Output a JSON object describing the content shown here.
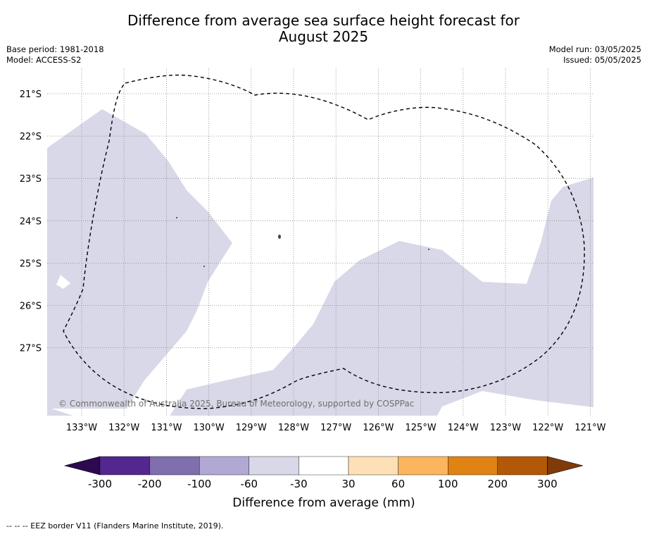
{
  "title_line1": "Difference from average sea surface height forecast for",
  "title_line2": "August 2025",
  "base_period": "Base period: 1981-2018",
  "model": "Model: ACCESS-S2",
  "model_run": "Model run: 03/05/2025",
  "issued": "Issued: 05/05/2025",
  "map": {
    "lon_labels": [
      "133°W",
      "132°W",
      "131°W",
      "130°W",
      "129°W",
      "128°W",
      "127°W",
      "126°W",
      "125°W",
      "124°W",
      "123°W",
      "122°W",
      "121°W"
    ],
    "lat_labels": [
      "21°S",
      "22°S",
      "23°S",
      "24°S",
      "25°S",
      "26°S",
      "27°S"
    ],
    "copyright": "© Commonwealth of Australia 2025, Bureau of Meteorology, supported by COSPPac",
    "shaded_category": "-60 to -30",
    "shade_color": "#d8d8e8"
  },
  "colorbar": {
    "label": "Difference from average (mm)",
    "ticks": [
      "-300",
      "-200",
      "-100",
      "-60",
      "-30",
      "30",
      "60",
      "100",
      "200",
      "300"
    ],
    "colors": {
      "under": "#2d0a4f",
      "bins": [
        "#54278f",
        "#7f6fad",
        "#b1a9d3",
        "#d8d8e8",
        "#ffffff",
        "#fee0b6",
        "#fbb55f",
        "#e08214",
        "#b35806"
      ],
      "over": "#7f3b08"
    }
  },
  "footnote": "--  --  -- EEZ border V11 (Flanders Marine Institute, 2019)."
}
